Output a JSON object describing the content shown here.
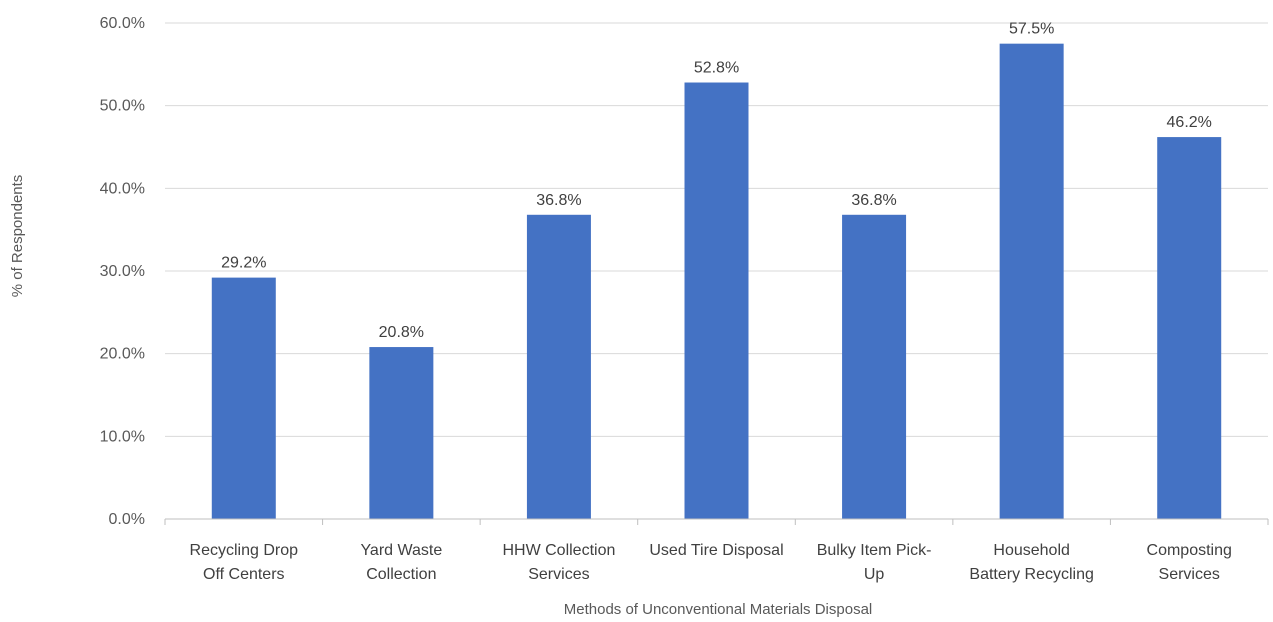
{
  "chart_data": {
    "type": "bar",
    "categories": [
      [
        "Recycling Drop",
        "Off Centers"
      ],
      [
        "Yard Waste",
        "Collection"
      ],
      [
        "HHW Collection",
        "Services"
      ],
      [
        "Used Tire Disposal"
      ],
      [
        "Bulky Item Pick-",
        "Up"
      ],
      [
        "Household",
        "Battery Recycling"
      ],
      [
        "Composting",
        "Services"
      ]
    ],
    "values": [
      29.2,
      20.8,
      36.8,
      52.8,
      36.8,
      57.5,
      46.2
    ],
    "data_labels": [
      "29.2%",
      "20.8%",
      "36.8%",
      "52.8%",
      "36.8%",
      "57.5%",
      "46.2%"
    ],
    "yticks": [
      "0.0%",
      "10.0%",
      "20.0%",
      "30.0%",
      "40.0%",
      "50.0%",
      "60.0%"
    ],
    "ylim": [
      0,
      60
    ],
    "xlabel": "Methods of Unconventional Materials Disposal",
    "ylabel": "% of Respondents",
    "grid": true,
    "bar_color": "#4472c4",
    "title": ""
  }
}
